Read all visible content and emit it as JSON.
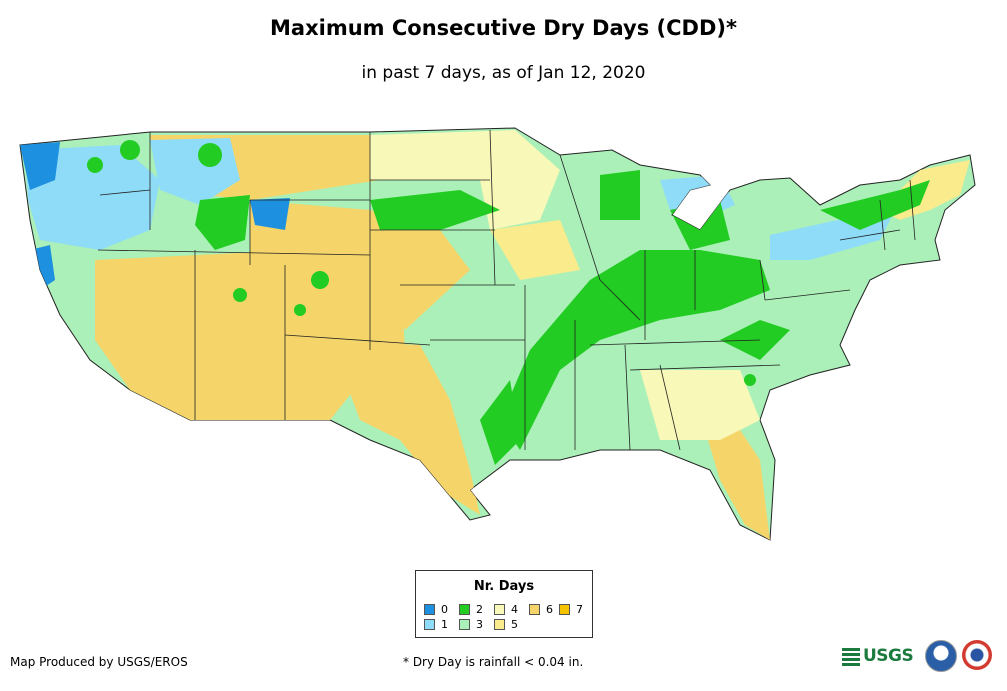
{
  "title": "Maximum Consecutive Dry Days (CDD)*",
  "subtitle": "in past 7 days, as of Jan 12, 2020",
  "legend": {
    "title": "Nr. Days",
    "items": [
      {
        "label": "0",
        "color": "#1e90e0"
      },
      {
        "label": "1",
        "color": "#8fdcf8"
      },
      {
        "label": "2",
        "color": "#22cc22"
      },
      {
        "label": "3",
        "color": "#aaf0b8"
      },
      {
        "label": "4",
        "color": "#f8f8b8"
      },
      {
        "label": "5",
        "color": "#faeb8c"
      },
      {
        "label": "6",
        "color": "#f5d56a"
      },
      {
        "label": "7",
        "color": "#f5c400"
      }
    ]
  },
  "footer": {
    "producer": "Map Produced by USGS/EROS",
    "note": "* Dry Day is rainfall < 0.04 in."
  },
  "logos": {
    "usgs": "USGS"
  }
}
